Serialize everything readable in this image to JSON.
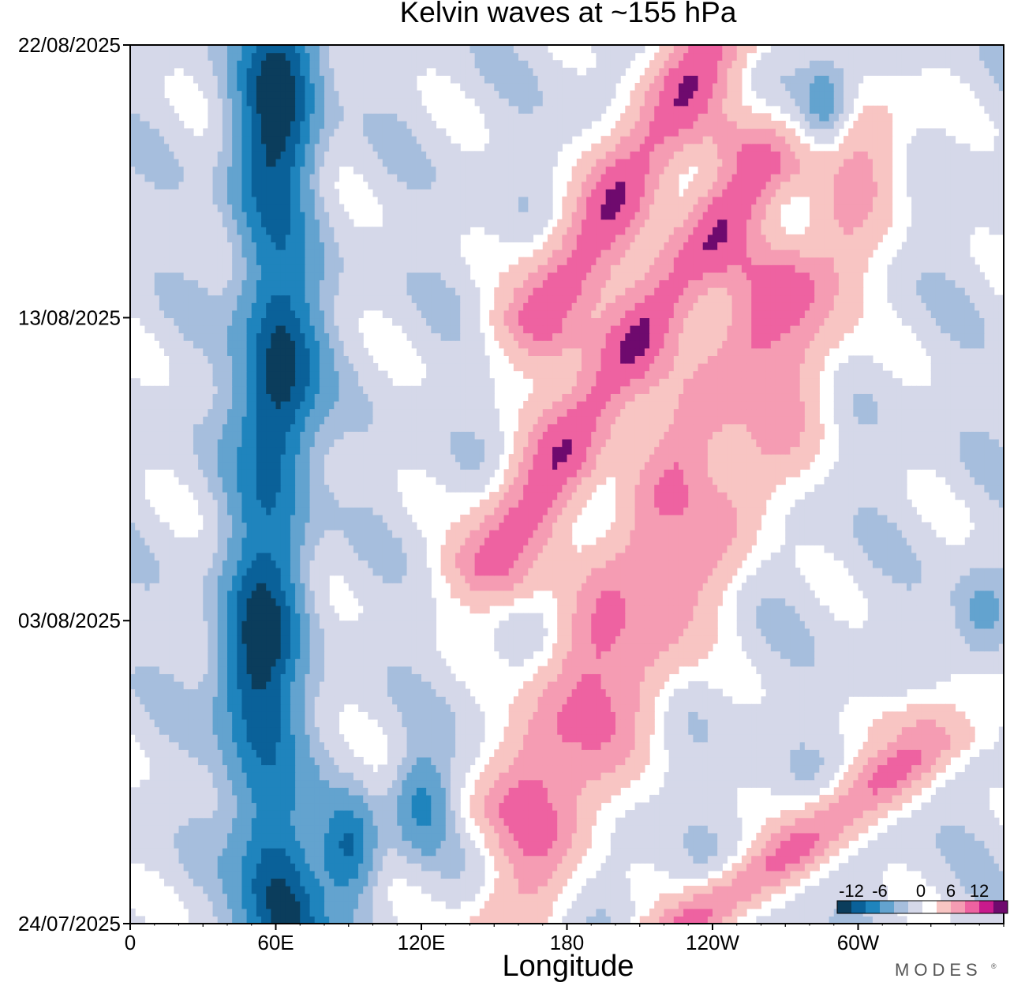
{
  "chart_data": {
    "type": "heatmap",
    "title": "Kelvin waves at ~155 hPa",
    "xlabel": "Longitude",
    "ylabel": "",
    "x_ticks": [
      "0",
      "60E",
      "120E",
      "180",
      "120W",
      "60W"
    ],
    "x_tick_values": [
      0,
      60,
      120,
      180,
      240,
      300
    ],
    "xlim": [
      0,
      360
    ],
    "y_ticks": [
      "24/07/2025",
      "03/08/2025",
      "13/08/2025",
      "22/08/2025"
    ],
    "y_tick_values": [
      0,
      10,
      20,
      29
    ],
    "ylim": [
      0,
      29
    ],
    "y_unit": "days",
    "colorbar": {
      "labels": [
        "-12",
        "-6",
        "0",
        "6",
        "12"
      ],
      "levels": [
        -15,
        -12,
        -9,
        -6,
        -3,
        -1,
        1,
        3,
        6,
        9,
        12,
        15
      ],
      "colors": [
        "#0b3d5c",
        "#0a6199",
        "#1f84bd",
        "#63a3cf",
        "#a6bedd",
        "#d5d8e9",
        "#ffffff",
        "#f8c5c3",
        "#f59cb3",
        "#ee62a1",
        "#c81a8c",
        "#6f0a6e"
      ]
    },
    "features": [
      {
        "kind": "negative-band",
        "points": [
          [
            62,
            29
          ],
          [
            58,
            24
          ],
          [
            62,
            19
          ],
          [
            58,
            14
          ],
          [
            52,
            8
          ],
          [
            58,
            3
          ],
          [
            64,
            0
          ]
        ],
        "peak": -14
      },
      {
        "kind": "negative-blob",
        "points": [
          [
            90,
            2.5
          ]
        ],
        "peak": -9
      },
      {
        "kind": "negative-blob",
        "points": [
          [
            120,
            4
          ]
        ],
        "peak": -7
      },
      {
        "kind": "positive-band",
        "points": [
          [
            155,
            0
          ],
          [
            210,
            8
          ],
          [
            265,
            16
          ],
          [
            305,
            26
          ]
        ],
        "peak": 6
      },
      {
        "kind": "positive-band",
        "points": [
          [
            160,
            4
          ],
          [
            195,
            10
          ],
          [
            230,
            16
          ],
          [
            265,
            21
          ]
        ],
        "peak": 8
      },
      {
        "kind": "positive-band",
        "points": [
          [
            150,
            12
          ],
          [
            190,
            17
          ],
          [
            215,
            20
          ],
          [
            260,
            25
          ]
        ],
        "peak": 11
      },
      {
        "kind": "positive-band",
        "points": [
          [
            170,
            20
          ],
          [
            205,
            24.5
          ],
          [
            240,
            29
          ]
        ],
        "peak": 11
      },
      {
        "kind": "positive-band",
        "points": [
          [
            230,
            0
          ],
          [
            275,
            2.5
          ],
          [
            330,
            6
          ]
        ],
        "peak": 9
      },
      {
        "kind": "negative-blob",
        "points": [
          [
            287,
            27
          ]
        ],
        "peak": -6
      },
      {
        "kind": "negative-blob",
        "points": [
          [
            350,
            10
          ]
        ],
        "peak": -4
      }
    ]
  },
  "branding": {
    "text": "MODES",
    "mark": "®"
  }
}
